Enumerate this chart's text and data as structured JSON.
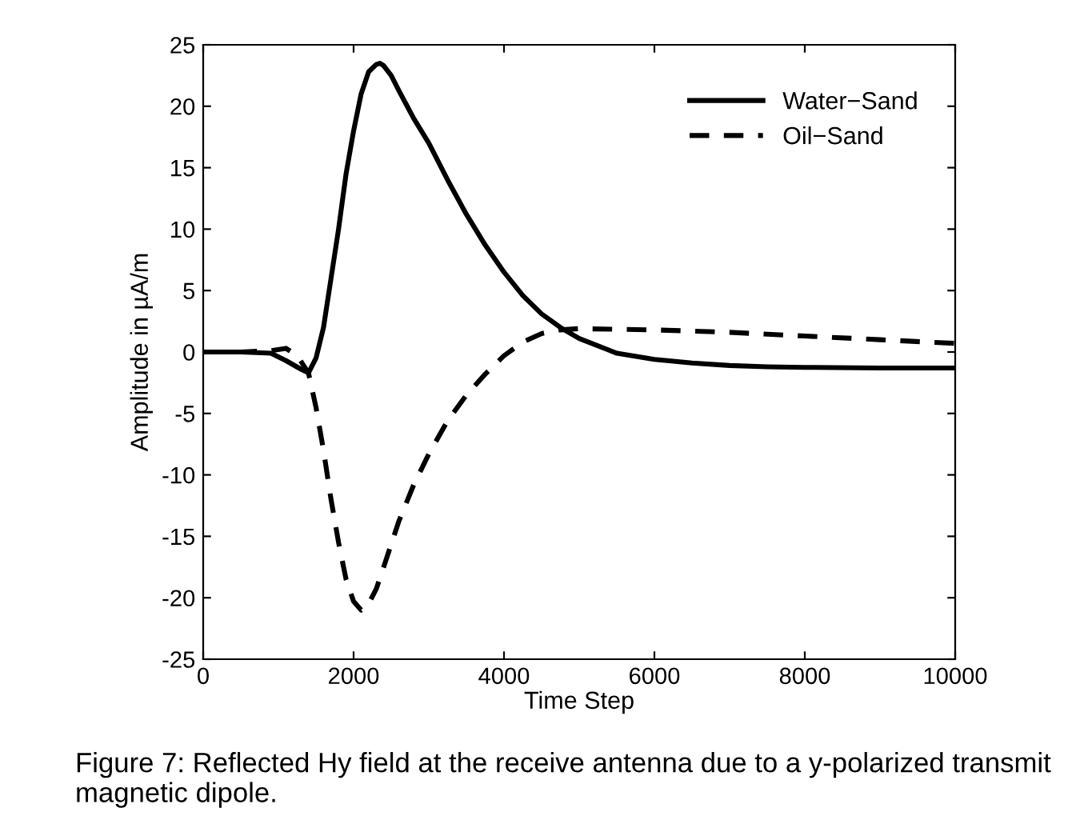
{
  "chart_data": {
    "type": "line",
    "xlabel": "Time Step",
    "ylabel": "Amplitude in µA/m",
    "xlim": [
      0,
      10000
    ],
    "ylim": [
      -25,
      25
    ],
    "xticks": [
      0,
      2000,
      4000,
      6000,
      8000,
      10000
    ],
    "yticks": [
      -25,
      -20,
      -15,
      -10,
      -5,
      0,
      5,
      10,
      15,
      20,
      25
    ],
    "grid": false,
    "legend": "top right",
    "annotations": [
      "Figure 7: Reflected Hy field at the receive antenna due to a y-polarized transmit magnetic dipole."
    ],
    "series": [
      {
        "name": "Water−Sand",
        "color": "#000000",
        "line_style": "solid",
        "x": [
          0,
          500,
          900,
          1100,
          1300,
          1400,
          1500,
          1600,
          1700,
          1800,
          1900,
          2000,
          2100,
          2200,
          2300,
          2350,
          2400,
          2500,
          2600,
          2800,
          3000,
          3250,
          3500,
          3750,
          4000,
          4250,
          4500,
          4750,
          5000,
          5500,
          6000,
          6500,
          7000,
          7500,
          8000,
          9000,
          10000
        ],
        "values": [
          0,
          0,
          -0.1,
          -0.7,
          -1.4,
          -1.7,
          -0.5,
          2,
          6,
          10,
          14.5,
          18,
          21,
          22.8,
          23.4,
          23.5,
          23.3,
          22.5,
          21.3,
          19,
          17,
          14,
          11.2,
          8.7,
          6.5,
          4.6,
          3.1,
          2,
          1.1,
          -0.1,
          -0.6,
          -0.9,
          -1.1,
          -1.2,
          -1.25,
          -1.3,
          -1.3
        ]
      },
      {
        "name": "Oil−Sand",
        "color": "#000000",
        "line_style": "dashed",
        "x": [
          0,
          500,
          900,
          1100,
          1250,
          1400,
          1500,
          1600,
          1700,
          1800,
          1900,
          2000,
          2100,
          2200,
          2300,
          2400,
          2600,
          2800,
          3000,
          3250,
          3500,
          3750,
          4000,
          4250,
          4500,
          4750,
          5000,
          6000,
          7000,
          8000,
          9000,
          10000
        ],
        "values": [
          0,
          0,
          0.1,
          0.3,
          -0.3,
          -1.7,
          -4.5,
          -8,
          -12,
          -15.5,
          -18.5,
          -20.3,
          -21,
          -20.5,
          -19.3,
          -17.5,
          -13.8,
          -10.8,
          -8.3,
          -5.6,
          -3.5,
          -1.8,
          -0.3,
          0.8,
          1.5,
          1.8,
          1.9,
          1.8,
          1.6,
          1.3,
          1,
          0.7
        ]
      }
    ]
  }
}
